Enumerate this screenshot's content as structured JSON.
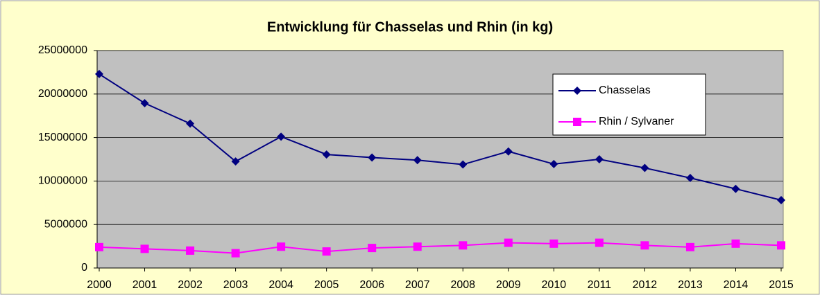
{
  "chart_data": {
    "type": "line",
    "title": "Entwicklung für Chasselas und Rhin (in kg)",
    "categories": [
      "2000",
      "2001",
      "2002",
      "2003",
      "2004",
      "2005",
      "2006",
      "2007",
      "2008",
      "2009",
      "2010",
      "2011",
      "2012",
      "2013",
      "2014",
      "2015"
    ],
    "series": [
      {
        "name": "Chasselas",
        "color": "#000080",
        "marker": "diamond",
        "values": [
          22300000,
          18950000,
          16600000,
          12250000,
          15100000,
          13050000,
          12700000,
          12400000,
          11900000,
          13400000,
          11950000,
          12500000,
          11500000,
          10350000,
          9100000,
          7800000
        ]
      },
      {
        "name": "Rhin / Sylvaner",
        "color": "#ff00ff",
        "marker": "square",
        "values": [
          2400000,
          2200000,
          2000000,
          1700000,
          2450000,
          1900000,
          2300000,
          2450000,
          2600000,
          2900000,
          2800000,
          2900000,
          2600000,
          2400000,
          2800000,
          2600000
        ]
      }
    ],
    "ylim": [
      0,
      25000000
    ],
    "yticks": [
      0,
      5000000,
      10000000,
      15000000,
      20000000,
      25000000
    ],
    "grid": true,
    "legend": "upper right"
  }
}
